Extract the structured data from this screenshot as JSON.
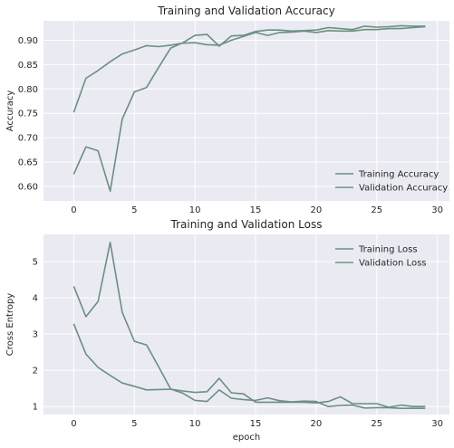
{
  "chart_data": [
    {
      "type": "line",
      "title": "Training and Validation Accuracy",
      "xlabel": "",
      "ylabel": "Accuracy",
      "xlim": [
        -2.5,
        31
      ],
      "ylim": [
        0.57,
        0.94
      ],
      "xticks": [
        0,
        5,
        10,
        15,
        20,
        25,
        30
      ],
      "yticks": [
        0.6,
        0.65,
        0.7,
        0.75,
        0.8,
        0.85,
        0.9
      ],
      "ytick_labels": [
        "0.60",
        "0.65",
        "0.70",
        "0.75",
        "0.80",
        "0.85",
        "0.90"
      ],
      "grid": true,
      "legend_position": "lower-right",
      "colors": {
        "series": "#6b8f83"
      },
      "series": [
        {
          "name": "Training Accuracy",
          "x": [
            0,
            1,
            2,
            3,
            4,
            5,
            6,
            7,
            8,
            9,
            10,
            11,
            12,
            13,
            14,
            15,
            16,
            17,
            18,
            19,
            20,
            21,
            22,
            23,
            24,
            25,
            26,
            27,
            28,
            29
          ],
          "values": [
            0.752,
            0.822,
            0.838,
            0.856,
            0.872,
            0.88,
            0.889,
            0.887,
            0.89,
            0.894,
            0.895,
            0.891,
            0.89,
            0.9,
            0.908,
            0.916,
            0.91,
            0.916,
            0.917,
            0.919,
            0.916,
            0.92,
            0.919,
            0.919,
            0.922,
            0.922,
            0.924,
            0.924,
            0.926,
            0.928
          ]
        },
        {
          "name": "Validation Accuracy",
          "x": [
            0,
            1,
            2,
            3,
            4,
            5,
            6,
            7,
            8,
            9,
            10,
            11,
            12,
            13,
            14,
            15,
            16,
            17,
            18,
            19,
            20,
            21,
            22,
            23,
            24,
            25,
            26,
            27,
            28,
            29
          ],
          "values": [
            0.625,
            0.681,
            0.673,
            0.59,
            0.738,
            0.794,
            0.803,
            0.844,
            0.884,
            0.895,
            0.91,
            0.912,
            0.888,
            0.909,
            0.91,
            0.918,
            0.921,
            0.921,
            0.919,
            0.92,
            0.921,
            0.926,
            0.924,
            0.922,
            0.929,
            0.927,
            0.928,
            0.93,
            0.929,
            0.929
          ]
        }
      ]
    },
    {
      "type": "line",
      "title": "Training and Validation Loss",
      "xlabel": "epoch",
      "ylabel": "Cross Entropy",
      "xlim": [
        -2.5,
        31
      ],
      "ylim": [
        0.78,
        5.75
      ],
      "xticks": [
        0,
        5,
        10,
        15,
        20,
        25,
        30
      ],
      "yticks": [
        1,
        2,
        3,
        4,
        5
      ],
      "ytick_labels": [
        "1",
        "2",
        "3",
        "4",
        "5"
      ],
      "grid": true,
      "legend_position": "upper-right",
      "colors": {
        "series": "#6b8f83"
      },
      "series": [
        {
          "name": "Training Loss",
          "x": [
            0,
            1,
            2,
            3,
            4,
            5,
            6,
            7,
            8,
            9,
            10,
            11,
            12,
            13,
            14,
            15,
            16,
            17,
            18,
            19,
            20,
            21,
            22,
            23,
            24,
            25,
            26,
            27,
            28,
            29
          ],
          "values": [
            3.28,
            2.45,
            2.08,
            1.86,
            1.65,
            1.56,
            1.46,
            1.47,
            1.48,
            1.43,
            1.39,
            1.41,
            1.78,
            1.38,
            1.35,
            1.12,
            1.12,
            1.12,
            1.12,
            1.12,
            1.1,
            1.14,
            1.27,
            1.08,
            1.08,
            1.08,
            0.98,
            1.04,
            1.0,
            1.0
          ]
        },
        {
          "name": "Validation Loss",
          "x": [
            0,
            1,
            2,
            3,
            4,
            5,
            6,
            7,
            8,
            9,
            10,
            11,
            12,
            13,
            14,
            15,
            16,
            17,
            18,
            19,
            20,
            21,
            22,
            23,
            24,
            25,
            26,
            27,
            28,
            29
          ],
          "values": [
            4.32,
            3.48,
            3.9,
            5.53,
            3.6,
            2.8,
            2.7,
            2.1,
            1.48,
            1.37,
            1.17,
            1.14,
            1.46,
            1.23,
            1.19,
            1.17,
            1.24,
            1.16,
            1.13,
            1.15,
            1.14,
            1.0,
            1.03,
            1.04,
            0.96,
            0.97,
            0.97,
            0.95,
            0.95,
            0.95
          ]
        }
      ]
    }
  ]
}
